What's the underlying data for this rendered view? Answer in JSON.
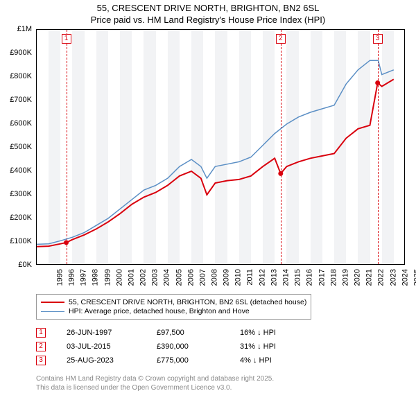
{
  "title": {
    "line1": "55, CRESCENT DRIVE NORTH, BRIGHTON, BN2 6SL",
    "line2": "Price paid vs. HM Land Registry's House Price Index (HPI)"
  },
  "chart": {
    "type": "line",
    "x_axis": {
      "min": 1995,
      "max": 2026,
      "tick_step": 1
    },
    "y_axis": {
      "min": 0,
      "max": 1000000,
      "tick_step": 100000,
      "ticks": [
        "£0K",
        "£100K",
        "£200K",
        "£300K",
        "£400K",
        "£500K",
        "£600K",
        "£700K",
        "£800K",
        "£900K",
        "£1M"
      ]
    },
    "background_color": "#ffffff",
    "alt_band_color": "#f2f3f5",
    "grid_color": "#cccccc",
    "series": [
      {
        "name": "hpi",
        "label": "HPI: Average price, detached house, Brighton and Hove",
        "color": "#5b8fc5",
        "width": 1.5,
        "x": [
          1995,
          1996,
          1997,
          1998,
          1999,
          2000,
          2001,
          2002,
          2003,
          2004,
          2005,
          2006,
          2007,
          2008,
          2008.8,
          2009.3,
          2010,
          2011,
          2012,
          2013,
          2014,
          2015,
          2016,
          2017,
          2018,
          2019,
          2020,
          2021,
          2022,
          2023,
          2023.7,
          2024,
          2025
        ],
        "y": [
          90000,
          92000,
          105000,
          120000,
          140000,
          170000,
          200000,
          240000,
          280000,
          320000,
          340000,
          370000,
          420000,
          450000,
          420000,
          370000,
          420000,
          430000,
          440000,
          460000,
          510000,
          560000,
          600000,
          630000,
          650000,
          665000,
          680000,
          770000,
          830000,
          870000,
          870000,
          810000,
          830000
        ]
      },
      {
        "name": "price-paid",
        "label": "55, CRESCENT DRIVE NORTH, BRIGHTON, BN2 6SL (detached house)",
        "color": "#d9000d",
        "width": 2,
        "x": [
          1995,
          1996,
          1997,
          1997.48,
          1998,
          1999,
          2000,
          2001,
          2002,
          2003,
          2004,
          2005,
          2006,
          2007,
          2008,
          2008.8,
          2009.3,
          2010,
          2011,
          2012,
          2013,
          2014,
          2015,
          2015.5,
          2016,
          2017,
          2018,
          2019,
          2020,
          2021,
          2022,
          2023,
          2023.65,
          2024,
          2025
        ],
        "y": [
          80000,
          82000,
          92000,
          97500,
          110000,
          130000,
          155000,
          185000,
          220000,
          260000,
          290000,
          310000,
          340000,
          380000,
          400000,
          370000,
          300000,
          350000,
          360000,
          365000,
          380000,
          420000,
          455000,
          390000,
          420000,
          440000,
          455000,
          465000,
          475000,
          540000,
          580000,
          595000,
          775000,
          760000,
          790000
        ]
      }
    ],
    "sale_markers": [
      {
        "n": "1",
        "year": 1997.48,
        "flag_color": "#d9000d"
      },
      {
        "n": "2",
        "year": 2015.5,
        "flag_color": "#d9000d"
      },
      {
        "n": "3",
        "year": 2023.65,
        "flag_color": "#d9000d"
      }
    ]
  },
  "legend": [
    {
      "color": "#d9000d",
      "width": 2,
      "label": "55, CRESCENT DRIVE NORTH, BRIGHTON, BN2 6SL (detached house)"
    },
    {
      "color": "#5b8fc5",
      "width": 1.5,
      "label": "HPI: Average price, detached house, Brighton and Hove"
    }
  ],
  "sales": [
    {
      "n": "1",
      "date": "26-JUN-1997",
      "price": "£97,500",
      "pct": "16% ↓ HPI",
      "flag_color": "#d9000d"
    },
    {
      "n": "2",
      "date": "03-JUL-2015",
      "price": "£390,000",
      "pct": "31% ↓ HPI",
      "flag_color": "#d9000d"
    },
    {
      "n": "3",
      "date": "25-AUG-2023",
      "price": "£775,000",
      "pct": "4% ↓ HPI",
      "flag_color": "#d9000d"
    }
  ],
  "attribution": {
    "line1": "Contains HM Land Registry data © Crown copyright and database right 2025.",
    "line2": "This data is licensed under the Open Government Licence v3.0."
  }
}
